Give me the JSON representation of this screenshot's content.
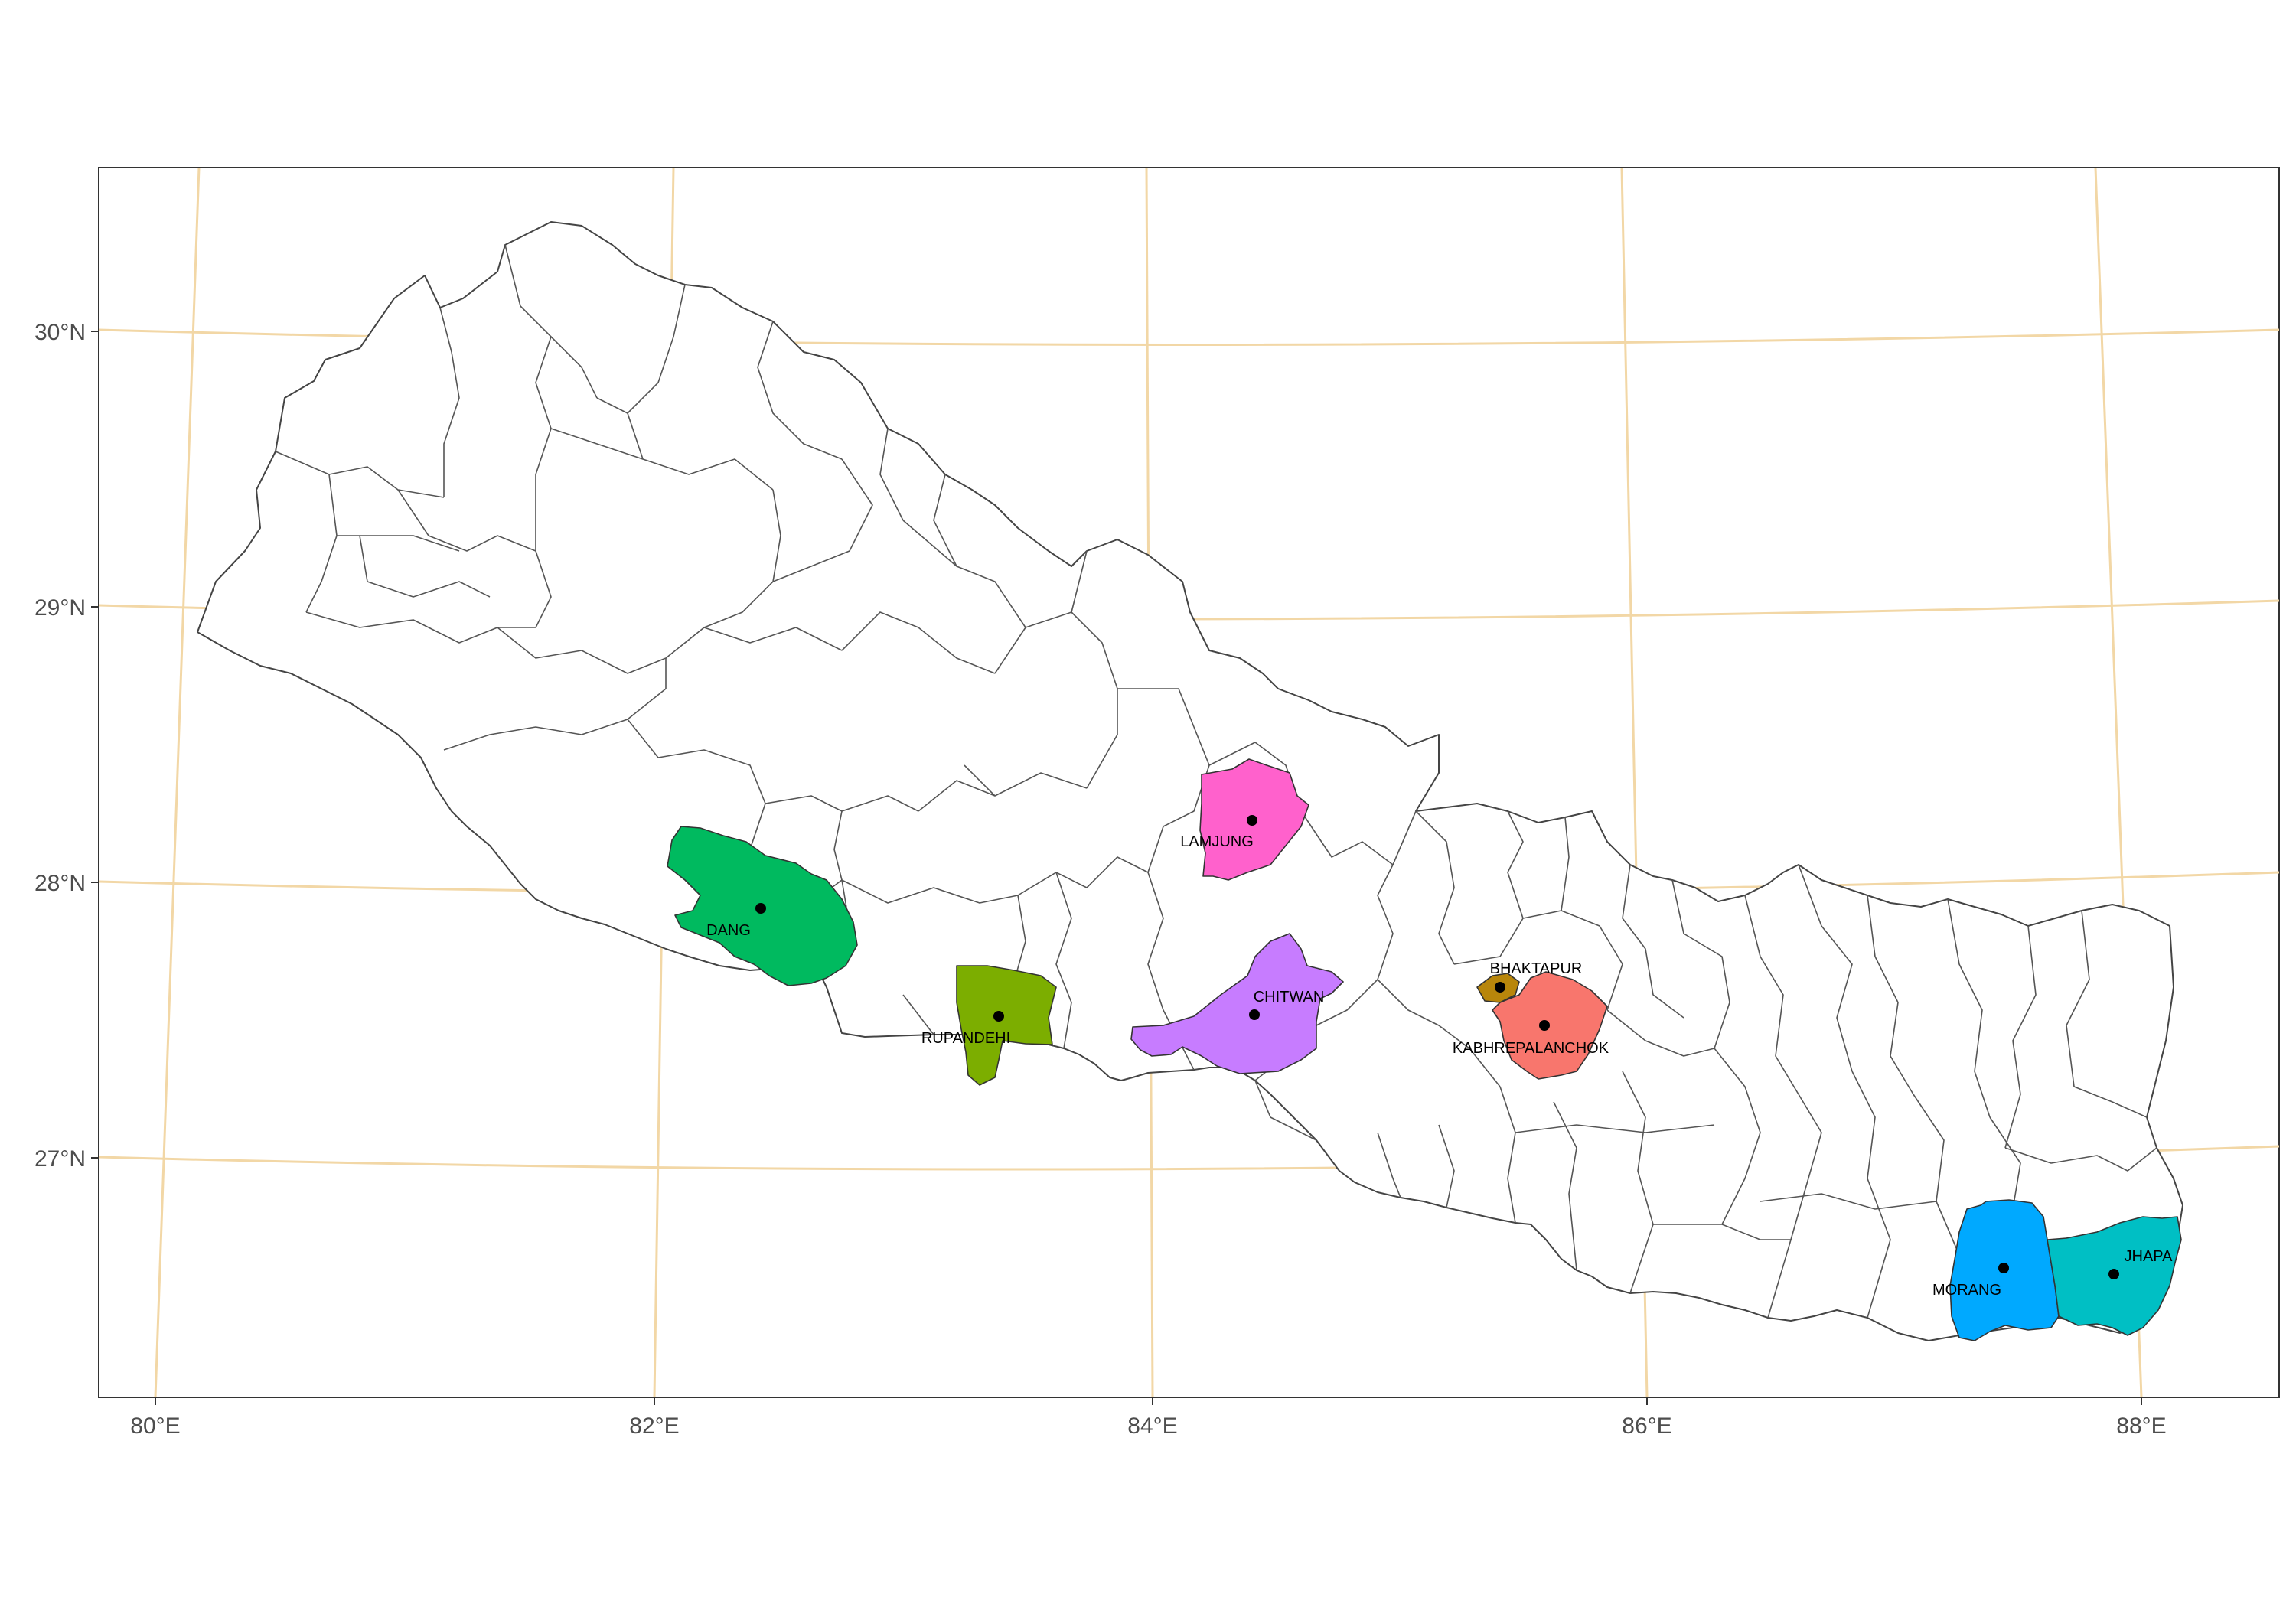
{
  "axes": {
    "x_ticks": [
      "80°E",
      "82°E",
      "84°E",
      "86°E",
      "88°E"
    ],
    "y_ticks": [
      "30°N",
      "29°N",
      "28°N",
      "27°N"
    ]
  },
  "districts": [
    {
      "name": "DANG",
      "color": "#00BA5F"
    },
    {
      "name": "RUPANDEHI",
      "color": "#7CAE00"
    },
    {
      "name": "LAMJUNG",
      "color": "#FF61CC"
    },
    {
      "name": "CHITWAN",
      "color": "#C77CFF"
    },
    {
      "name": "BHAKTAPUR",
      "color": "#B8860B"
    },
    {
      "name": "KABHREPALANCHOK",
      "color": "#F8766D"
    },
    {
      "name": "MORANG",
      "color": "#00A9FF"
    },
    {
      "name": "JHAPA",
      "color": "#00BFC4"
    }
  ],
  "colors": {
    "graticule": "#f2d7a6",
    "border": "#444444",
    "background": "#ffffff"
  }
}
